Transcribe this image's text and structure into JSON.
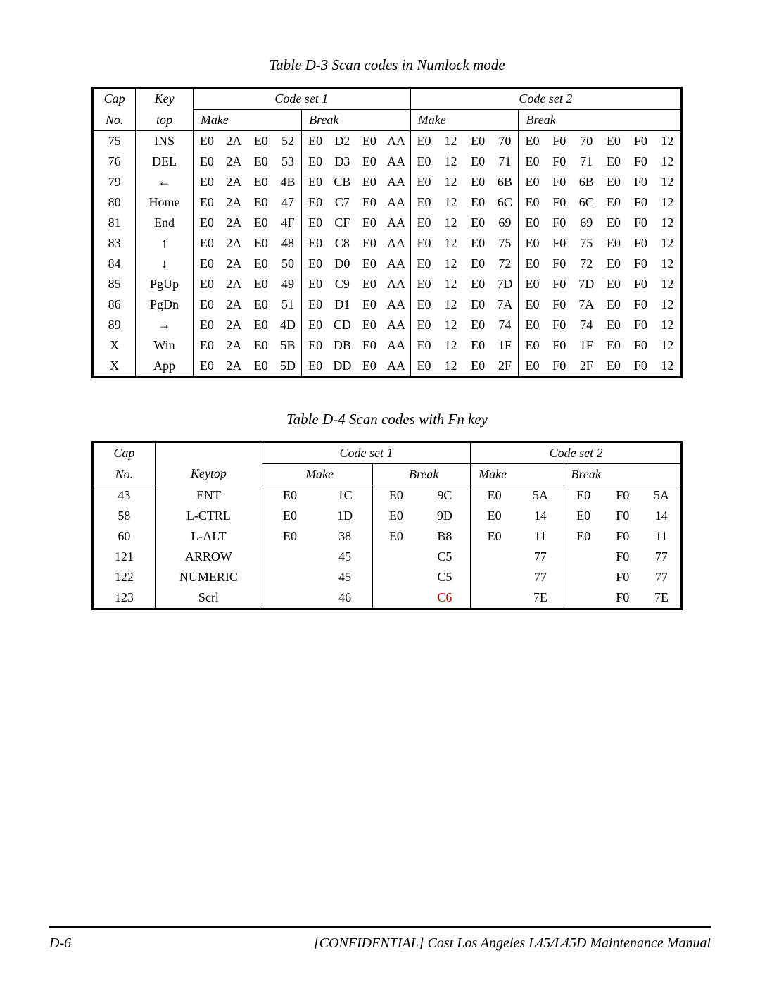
{
  "table_d3": {
    "caption": "Table D-3  Scan codes in Numlock mode",
    "headers": {
      "cap": "Cap",
      "no": "No.",
      "key": "Key",
      "top": "top",
      "code1": "Code set 1",
      "code2": "Code set 2",
      "make": "Make",
      "break": "Break"
    },
    "rows": [
      {
        "cap": "75",
        "key": "INS",
        "m1": [
          "E0",
          "2A",
          "E0",
          "52"
        ],
        "b1": [
          "E0",
          "D2",
          "E0",
          "AA"
        ],
        "m2": [
          "E0",
          "12",
          "E0",
          "70"
        ],
        "b2": [
          "E0",
          "F0",
          "70",
          "E0",
          "F0",
          "12"
        ]
      },
      {
        "cap": "76",
        "key": "DEL",
        "m1": [
          "E0",
          "2A",
          "E0",
          "53"
        ],
        "b1": [
          "E0",
          "D3",
          "E0",
          "AA"
        ],
        "m2": [
          "E0",
          "12",
          "E0",
          "71"
        ],
        "b2": [
          "E0",
          "F0",
          "71",
          "E0",
          "F0",
          "12"
        ]
      },
      {
        "cap": "79",
        "key": "←",
        "m1": [
          "E0",
          "2A",
          "E0",
          "4B"
        ],
        "b1": [
          "E0",
          "CB",
          "E0",
          "AA"
        ],
        "m2": [
          "E0",
          "12",
          "E0",
          "6B"
        ],
        "b2": [
          "E0",
          "F0",
          "6B",
          "E0",
          "F0",
          "12"
        ]
      },
      {
        "cap": "80",
        "key": "Home",
        "m1": [
          "E0",
          "2A",
          "E0",
          "47"
        ],
        "b1": [
          "E0",
          "C7",
          "E0",
          "AA"
        ],
        "m2": [
          "E0",
          "12",
          "E0",
          "6C"
        ],
        "b2": [
          "E0",
          "F0",
          "6C",
          "E0",
          "F0",
          "12"
        ]
      },
      {
        "cap": "81",
        "key": "End",
        "m1": [
          "E0",
          "2A",
          "E0",
          "4F"
        ],
        "b1": [
          "E0",
          "CF",
          "E0",
          "AA"
        ],
        "m2": [
          "E0",
          "12",
          "E0",
          "69"
        ],
        "b2": [
          "E0",
          "F0",
          "69",
          "E0",
          "F0",
          "12"
        ]
      },
      {
        "cap": "83",
        "key": "↑",
        "m1": [
          "E0",
          "2A",
          "E0",
          "48"
        ],
        "b1": [
          "E0",
          "C8",
          "E0",
          "AA"
        ],
        "m2": [
          "E0",
          "12",
          "E0",
          "75"
        ],
        "b2": [
          "E0",
          "F0",
          "75",
          "E0",
          "F0",
          "12"
        ]
      },
      {
        "cap": "84",
        "key": "↓",
        "m1": [
          "E0",
          "2A",
          "E0",
          "50"
        ],
        "b1": [
          "E0",
          "D0",
          "E0",
          "AA"
        ],
        "m2": [
          "E0",
          "12",
          "E0",
          "72"
        ],
        "b2": [
          "E0",
          "F0",
          "72",
          "E0",
          "F0",
          "12"
        ]
      },
      {
        "cap": "85",
        "key": "PgUp",
        "m1": [
          "E0",
          "2A",
          "E0",
          "49"
        ],
        "b1": [
          "E0",
          "C9",
          "E0",
          "AA"
        ],
        "m2": [
          "E0",
          "12",
          "E0",
          "7D"
        ],
        "b2": [
          "E0",
          "F0",
          "7D",
          "E0",
          "F0",
          "12"
        ]
      },
      {
        "cap": "86",
        "key": "PgDn",
        "m1": [
          "E0",
          "2A",
          "E0",
          "51"
        ],
        "b1": [
          "E0",
          "D1",
          "E0",
          "AA"
        ],
        "m2": [
          "E0",
          "12",
          "E0",
          "7A"
        ],
        "b2": [
          "E0",
          "F0",
          "7A",
          "E0",
          "F0",
          "12"
        ]
      },
      {
        "cap": "89",
        "key": "→",
        "m1": [
          "E0",
          "2A",
          "E0",
          "4D"
        ],
        "b1": [
          "E0",
          "CD",
          "E0",
          "AA"
        ],
        "m2": [
          "E0",
          "12",
          "E0",
          "74"
        ],
        "b2": [
          "E0",
          "F0",
          "74",
          "E0",
          "F0",
          "12"
        ]
      },
      {
        "cap": "X",
        "key": "Win",
        "m1": [
          "E0",
          "2A",
          "E0",
          "5B"
        ],
        "b1": [
          "E0",
          "DB",
          "E0",
          "AA"
        ],
        "m2": [
          "E0",
          "12",
          "E0",
          "1F"
        ],
        "b2": [
          "E0",
          "F0",
          "1F",
          "E0",
          "F0",
          "12"
        ]
      },
      {
        "cap": "X",
        "key": "App",
        "m1": [
          "E0",
          "2A",
          "E0",
          "5D"
        ],
        "b1": [
          "E0",
          "DD",
          "E0",
          "AA"
        ],
        "m2": [
          "E0",
          "12",
          "E0",
          "2F"
        ],
        "b2": [
          "E0",
          "F0",
          "2F",
          "E0",
          "F0",
          "12"
        ]
      }
    ]
  },
  "table_d4": {
    "caption": "Table D-4  Scan codes with Fn key",
    "headers": {
      "cap": "Cap",
      "no": "No.",
      "keytop": "Keytop",
      "code1": "Code set 1",
      "code2": "Code set 2",
      "make": "Make",
      "break": "Break"
    },
    "rows": [
      {
        "cap": "43",
        "key": "ENT",
        "m1": [
          "E0",
          "1C"
        ],
        "b1": [
          "E0",
          "9C"
        ],
        "m2": [
          "E0",
          "5A"
        ],
        "b2": [
          "E0",
          "F0",
          "5A"
        ]
      },
      {
        "cap": "58",
        "key": "L-CTRL",
        "m1": [
          "E0",
          "1D"
        ],
        "b1": [
          "E0",
          "9D"
        ],
        "m2": [
          "E0",
          "14"
        ],
        "b2": [
          "E0",
          "F0",
          "14"
        ]
      },
      {
        "cap": "60",
        "key": "L-ALT",
        "m1": [
          "E0",
          "38"
        ],
        "b1": [
          "E0",
          "B8"
        ],
        "m2": [
          "E0",
          "11"
        ],
        "b2": [
          "E0",
          "F0",
          "11"
        ]
      },
      {
        "cap": "121",
        "key": "ARROW",
        "m1": [
          "",
          "45"
        ],
        "b1": [
          "",
          "C5"
        ],
        "m2": [
          "",
          "77"
        ],
        "b2": [
          "",
          "F0",
          "77"
        ]
      },
      {
        "cap": "122",
        "key": "NUMERIC",
        "m1": [
          "",
          "45"
        ],
        "b1": [
          "",
          "C5"
        ],
        "m2": [
          "",
          "77"
        ],
        "b2": [
          "",
          "F0",
          "77"
        ]
      },
      {
        "cap": "123",
        "key": "Scrl",
        "m1": [
          "",
          "46"
        ],
        "b1": [
          "",
          "C6"
        ],
        "m2": [
          "",
          "7E"
        ],
        "b2": [
          "",
          "F0",
          "7E"
        ]
      }
    ],
    "red_cells": [
      {
        "row": 5,
        "section": "b1",
        "col": 1
      }
    ]
  },
  "footer": {
    "page": "D-6",
    "text_left": "[CONFIDENTIAL]",
    "text_mid": " Cost Los Angeles ",
    "text_model": "L45/L45D",
    "text_right": " Maintenance Manual"
  }
}
